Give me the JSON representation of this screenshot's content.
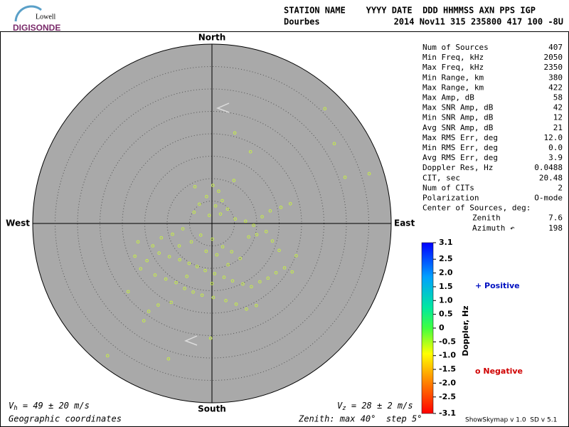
{
  "header": {
    "logo_top": "Lowell",
    "logo_main": "DIGISONDE",
    "line1": "STATION NAME    YYYY DATE  DDD HHMMSS AXN PPS IGP",
    "line2_left": "Dourbes",
    "line2_right": "2014 Nov11 315 235800 417 100 -8U"
  },
  "stats": {
    "rows": [
      [
        "Num of Sources",
        "407"
      ],
      [
        "Min Freq, kHz",
        "2050"
      ],
      [
        "Max Freq, kHz",
        "2350"
      ],
      [
        "Min Range, km",
        "380"
      ],
      [
        "Max Range, km",
        "422"
      ],
      [
        "Max Amp, dB",
        "58"
      ],
      [
        "Max SNR Amp, dB",
        "42"
      ],
      [
        "Min SNR Amp, dB",
        "12"
      ],
      [
        "Avg SNR Amp, dB",
        "21"
      ],
      [
        "Max RMS Err, deg",
        "12.0"
      ],
      [
        "Min RMS Err, deg",
        "0.0"
      ],
      [
        "Avg RMS Err, deg",
        "3.9"
      ],
      [
        "Doppler Res, Hz",
        "0.0488"
      ],
      [
        "CIT, sec",
        "20.48"
      ],
      [
        "Num of CITs",
        "2"
      ],
      [
        "Polarization",
        "O-mode"
      ]
    ],
    "center_title": "Center of Sources, deg:",
    "center_rows": [
      [
        "Zenith",
        "7.6"
      ],
      [
        "Azimuth ↶",
        "198"
      ]
    ]
  },
  "chart_data": {
    "type": "scatter",
    "directions": {
      "north": "North",
      "south": "South",
      "east": "East",
      "west": "West"
    },
    "zenith_max": 40,
    "zenith_step": 5,
    "color": "#c6ee46",
    "x": [
      25.2,
      27.3,
      35.1,
      29.7,
      -23.3,
      -9.7,
      -0.3,
      8.6,
      5.1,
      -15.2,
      -18.7,
      0.2,
      1.5,
      -1.2,
      2.3,
      -2.8,
      0.8,
      3.5,
      -4.0,
      1.9,
      -0.6,
      5.2,
      7.5,
      9.3,
      11.2,
      13.0,
      15.4,
      17.5,
      12.1,
      10.0,
      8.2,
      -6.5,
      -8.8,
      -11.3,
      -13.2,
      -11.8,
      -9.5,
      -7.2,
      -5.1,
      -3.3,
      -1.5,
      0.6,
      2.7,
      4.6,
      6.9,
      8.8,
      10.7,
      12.5,
      14.3,
      16.2,
      17.9,
      -14.5,
      -15.9,
      -12.7,
      -10.3,
      -8.0,
      -6.1,
      -4.2,
      -2.2,
      0.3,
      3.1,
      5.4,
      7.7,
      9.9,
      -16.5,
      -12.0,
      -14.1,
      -9.1,
      -7.3,
      -4.6,
      -2.5,
      0.1,
      2.4,
      4.4,
      6.3,
      3.6,
      1.1,
      -1.3,
      15.0,
      13.5,
      18.8,
      -3.8,
      4.9,
      -17.2,
      0.0,
      -5.6
    ],
    "values": [
      25.6,
      17.8,
      11.1,
      10.3,
      -29.5,
      -30.2,
      -25.6,
      16.0,
      20.2,
      -21.7,
      -15.2,
      8.5,
      7.2,
      6.0,
      5.1,
      4.3,
      3.9,
      3.2,
      2.5,
      2.1,
      1.8,
      1.0,
      0.5,
      -0.4,
      1.5,
      2.8,
      3.6,
      4.4,
      -1.8,
      -2.5,
      -3.0,
      -1.2,
      -2.4,
      -3.2,
      -5.0,
      -6.6,
      -7.4,
      -8.1,
      -8.9,
      -9.6,
      -10.5,
      -11.2,
      -12.0,
      -12.8,
      -13.5,
      -14.1,
      -13.0,
      -12.2,
      -11.0,
      -9.9,
      -10.8,
      -8.3,
      -10.1,
      -11.5,
      -12.4,
      -13.2,
      -14.5,
      -15.3,
      -16.0,
      -16.5,
      -17.2,
      -18.0,
      -19.1,
      -18.3,
      -4.1,
      -18.2,
      -19.6,
      -17.6,
      -5.0,
      -4.1,
      -2.6,
      -3.5,
      -5.2,
      -6.3,
      -7.8,
      -9.2,
      -7.0,
      -6.2,
      -6.0,
      -3.9,
      -7.2,
      8.2,
      9.6,
      -7.3,
      -13.4,
      -11.8
    ],
    "colorbar": {
      "label": "Doppler, Hz",
      "lim": [
        -3.1,
        3.1
      ],
      "ticks": [
        3.1,
        2.5,
        {
          "value": 2,
          "label": "2.0"
        },
        1.5,
        {
          "value": 1,
          "label": "1.0"
        },
        0.5,
        0,
        -0.5,
        {
          "value": -1,
          "label": "-1.0"
        },
        -1.5,
        {
          "value": -2,
          "label": "-2.0"
        },
        -2.5,
        -3.1
      ],
      "positive": "+ Positive",
      "negative": "o Negative"
    },
    "vh": {
      "symbol": "V",
      "sub": "h",
      "text": " = 49 ± 20 m/s"
    },
    "vz": {
      "symbol": "V",
      "sub": "z",
      "text": " = 28 ± 2 m/s"
    },
    "coords": "Geographic coordinates",
    "zenith_text": "Zenith: max 40°  step 5°"
  },
  "footer": "ShowSkymap v 1.0  SD v 5.1"
}
